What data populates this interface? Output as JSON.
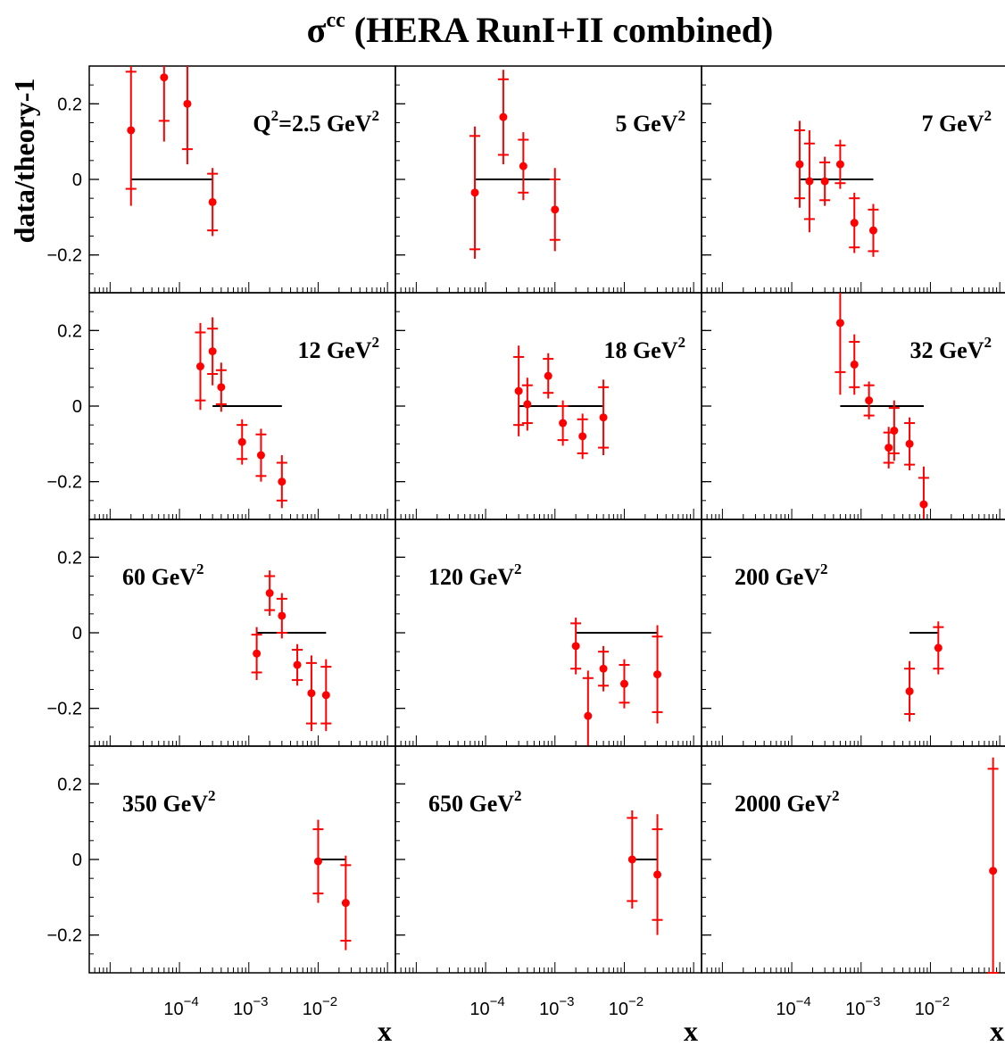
{
  "chart_data": {
    "type": "scatter",
    "title": {
      "main": "σ",
      "superscript": "cc",
      "rest": " (HERA RunI+II combined)"
    },
    "ylabel": "data/theory-1",
    "xlabel": "x",
    "x_scale": "log",
    "xlim": [
      5e-06,
      0.13
    ],
    "ylim": [
      -0.3,
      0.3
    ],
    "yticks": [
      {
        "v": 0.2,
        "label": "0.2"
      },
      {
        "v": 0,
        "label": "0"
      },
      {
        "v": -0.2,
        "label": "−0.2"
      }
    ],
    "xticks": [
      {
        "v": 0.0001,
        "base": "10",
        "exp": "−4"
      },
      {
        "v": 0.001,
        "base": "10",
        "exp": "−3"
      },
      {
        "v": 0.01,
        "base": "10",
        "exp": "−2"
      }
    ],
    "colors": {
      "data": "#ff0000",
      "reference": "#000000",
      "frame": "#000000"
    },
    "panels": [
      {
        "label": "Q",
        "label_sup": "2",
        "label_rest": "=2.5 GeV",
        "label_sup2": "2",
        "label_pos": "top-right",
        "ref": [
          2e-05,
          0.0003
        ],
        "points": [
          {
            "x": 2e-05,
            "y": 0.13,
            "stat": 0.155,
            "tot": 0.2
          },
          {
            "x": 6e-05,
            "y": 0.27,
            "stat": 0.115,
            "tot": 0.17
          },
          {
            "x": 0.00013,
            "y": 0.2,
            "stat": 0.12,
            "tot": 0.16
          },
          {
            "x": 0.0003,
            "y": -0.06,
            "stat": 0.075,
            "tot": 0.09
          }
        ]
      },
      {
        "label": "5 GeV",
        "label_sup": "2",
        "label_pos": "top-right",
        "ref": [
          7e-05,
          0.001
        ],
        "points": [
          {
            "x": 7e-05,
            "y": -0.035,
            "stat": 0.15,
            "tot": 0.175
          },
          {
            "x": 0.00018,
            "y": 0.165,
            "stat": 0.1,
            "tot": 0.125
          },
          {
            "x": 0.00035,
            "y": 0.035,
            "stat": 0.07,
            "tot": 0.09
          },
          {
            "x": 0.001,
            "y": -0.08,
            "stat": 0.08,
            "tot": 0.11
          }
        ]
      },
      {
        "label": "7 GeV",
        "label_sup": "2",
        "label_pos": "top-right",
        "ref": [
          0.00013,
          0.0015
        ],
        "points": [
          {
            "x": 0.00013,
            "y": 0.04,
            "stat": 0.09,
            "tot": 0.115
          },
          {
            "x": 0.00018,
            "y": -0.005,
            "stat": 0.1,
            "tot": 0.135
          },
          {
            "x": 0.0003,
            "y": -0.005,
            "stat": 0.05,
            "tot": 0.065
          },
          {
            "x": 0.0005,
            "y": 0.04,
            "stat": 0.05,
            "tot": 0.065
          },
          {
            "x": 0.0008,
            "y": -0.115,
            "stat": 0.065,
            "tot": 0.08
          },
          {
            "x": 0.0015,
            "y": -0.135,
            "stat": 0.055,
            "tot": 0.07
          }
        ]
      },
      {
        "label": "12 GeV",
        "label_sup": "2",
        "label_pos": "top-right",
        "ref": [
          0.0003,
          0.003
        ],
        "points": [
          {
            "x": 0.0002,
            "y": 0.105,
            "stat": 0.09,
            "tot": 0.115
          },
          {
            "x": 0.0003,
            "y": 0.145,
            "stat": 0.06,
            "tot": 0.09
          },
          {
            "x": 0.0004,
            "y": 0.05,
            "stat": 0.045,
            "tot": 0.065
          },
          {
            "x": 0.0008,
            "y": -0.095,
            "stat": 0.045,
            "tot": 0.06
          },
          {
            "x": 0.0015,
            "y": -0.13,
            "stat": 0.055,
            "tot": 0.07
          },
          {
            "x": 0.003,
            "y": -0.2,
            "stat": 0.05,
            "tot": 0.07
          }
        ]
      },
      {
        "label": "18 GeV",
        "label_sup": "2",
        "label_pos": "top-right",
        "ref": [
          0.0003,
          0.005
        ],
        "points": [
          {
            "x": 0.0003,
            "y": 0.04,
            "stat": 0.09,
            "tot": 0.12
          },
          {
            "x": 0.0004,
            "y": 0.005,
            "stat": 0.05,
            "tot": 0.07
          },
          {
            "x": 0.0008,
            "y": 0.08,
            "stat": 0.045,
            "tot": 0.06
          },
          {
            "x": 0.0013,
            "y": -0.045,
            "stat": 0.045,
            "tot": 0.06
          },
          {
            "x": 0.0025,
            "y": -0.08,
            "stat": 0.045,
            "tot": 0.06
          },
          {
            "x": 0.005,
            "y": -0.03,
            "stat": 0.08,
            "tot": 0.1
          }
        ]
      },
      {
        "label": "32 GeV",
        "label_sup": "2",
        "label_pos": "top-right",
        "ref": [
          0.0005,
          0.008
        ],
        "points": [
          {
            "x": 0.0005,
            "y": 0.22,
            "stat": 0.13,
            "tot": 0.19
          },
          {
            "x": 0.0008,
            "y": 0.11,
            "stat": 0.06,
            "tot": 0.08
          },
          {
            "x": 0.0013,
            "y": 0.015,
            "stat": 0.04,
            "tot": 0.05
          },
          {
            "x": 0.0025,
            "y": -0.11,
            "stat": 0.04,
            "tot": 0.055
          },
          {
            "x": 0.003,
            "y": -0.065,
            "stat": 0.06,
            "tot": 0.08
          },
          {
            "x": 0.005,
            "y": -0.1,
            "stat": 0.055,
            "tot": 0.07
          },
          {
            "x": 0.008,
            "y": -0.26,
            "stat": 0.07,
            "tot": 0.1
          }
        ]
      },
      {
        "label": "60 GeV",
        "label_sup": "2",
        "label_pos": "top-left",
        "ref": [
          0.0013,
          0.013
        ],
        "points": [
          {
            "x": 0.0013,
            "y": -0.055,
            "stat": 0.05,
            "tot": 0.07
          },
          {
            "x": 0.002,
            "y": 0.105,
            "stat": 0.045,
            "tot": 0.06
          },
          {
            "x": 0.003,
            "y": 0.045,
            "stat": 0.045,
            "tot": 0.06
          },
          {
            "x": 0.005,
            "y": -0.085,
            "stat": 0.04,
            "tot": 0.055
          },
          {
            "x": 0.008,
            "y": -0.16,
            "stat": 0.08,
            "tot": 0.1
          },
          {
            "x": 0.013,
            "y": -0.165,
            "stat": 0.075,
            "tot": 0.095
          }
        ]
      },
      {
        "label": "120 GeV",
        "label_sup": "2",
        "label_pos": "top-left",
        "ref": [
          0.002,
          0.03
        ],
        "points": [
          {
            "x": 0.002,
            "y": -0.035,
            "stat": 0.06,
            "tot": 0.075
          },
          {
            "x": 0.003,
            "y": -0.22,
            "stat": 0.1,
            "tot": 0.12
          },
          {
            "x": 0.005,
            "y": -0.095,
            "stat": 0.045,
            "tot": 0.06
          },
          {
            "x": 0.01,
            "y": -0.135,
            "stat": 0.05,
            "tot": 0.065
          },
          {
            "x": 0.03,
            "y": -0.11,
            "stat": 0.1,
            "tot": 0.13
          }
        ]
      },
      {
        "label": "200 GeV",
        "label_sup": "2",
        "label_pos": "top-left",
        "ref": [
          0.005,
          0.013
        ],
        "points": [
          {
            "x": 0.005,
            "y": -0.155,
            "stat": 0.06,
            "tot": 0.08
          },
          {
            "x": 0.013,
            "y": -0.04,
            "stat": 0.055,
            "tot": 0.07
          }
        ]
      },
      {
        "label": "350 GeV",
        "label_sup": "2",
        "label_pos": "top-left",
        "ref": [
          0.01,
          0.025
        ],
        "points": [
          {
            "x": 0.01,
            "y": -0.005,
            "stat": 0.085,
            "tot": 0.11
          },
          {
            "x": 0.025,
            "y": -0.115,
            "stat": 0.1,
            "tot": 0.125
          }
        ]
      },
      {
        "label": "650 GeV",
        "label_sup": "2",
        "label_pos": "top-left",
        "ref": [
          0.013,
          0.03
        ],
        "points": [
          {
            "x": 0.013,
            "y": 0.0,
            "stat": 0.11,
            "tot": 0.13
          },
          {
            "x": 0.03,
            "y": -0.04,
            "stat": 0.12,
            "tot": 0.16
          }
        ]
      },
      {
        "label": "2000 GeV",
        "label_sup": "2",
        "label_pos": "top-left",
        "ref": [],
        "points": [
          {
            "x": 0.08,
            "y": -0.03,
            "stat": 0.27,
            "tot": 0.3
          }
        ]
      }
    ]
  }
}
